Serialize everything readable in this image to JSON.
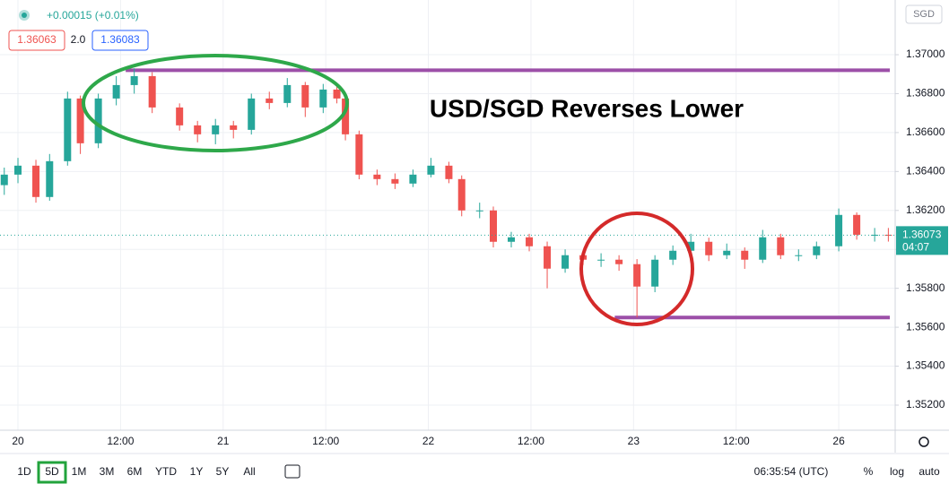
{
  "ui": {
    "change": "+0.00015 (+0.01%)",
    "bid": "1.36063",
    "spread": "2.0",
    "ask": "1.36083",
    "currency": "SGD",
    "countdown": "04:07",
    "ranges": [
      "1D",
      "5D",
      "1M",
      "3M",
      "6M",
      "YTD",
      "1Y",
      "5Y",
      "All"
    ],
    "selected_range": "5D",
    "clock": "06:35:54 (UTC)",
    "options": [
      "%",
      "log",
      "auto"
    ]
  },
  "chart_data": {
    "type": "candlestick",
    "title": "USD/SGD Reverses Lower",
    "up_color": "#26a69a",
    "down_color": "#ef5350",
    "grid": true,
    "x": [
      -1.6,
      0,
      2.1,
      3.7,
      5.8,
      7.3,
      9.4,
      11.5,
      13.6,
      15.7,
      18.9,
      21,
      23.1,
      25.2,
      27.3,
      29.4,
      31.5,
      33.6,
      35.7,
      37.3,
      38.3,
      39.9,
      42,
      44.1,
      46.2,
      48.3,
      50.4,
      51.9,
      54,
      55.6,
      57.7,
      59.8,
      61.9,
      64,
      66.1,
      68.2,
      70.3,
      72.4,
      74.5,
      76.6,
      78.7,
      80.8,
      82.9,
      85,
      87.1,
      89.2,
      91.3,
      93.4,
      96,
      98.1,
      100.2,
      101.8
    ],
    "open": [
      1.3633,
      1.36384,
      1.3643,
      1.36269,
      1.36453,
      1.36775,
      1.36545,
      1.36775,
      1.36844,
      1.3689,
      1.36729,
      1.36637,
      1.36591,
      1.36637,
      1.36614,
      1.36775,
      1.36752,
      1.36844,
      1.36729,
      1.36821,
      1.36775,
      1.36591,
      1.36384,
      1.36361,
      1.36338,
      1.36384,
      1.3643,
      1.36361,
      1.362,
      1.362,
      1.36039,
      1.36062,
      1.36016,
      1.35901,
      1.3597,
      1.35947,
      1.35947,
      1.35924,
      1.35809,
      1.35947,
      1.35993,
      1.36039,
      1.3597,
      1.35993,
      1.35947,
      1.36062,
      1.3597,
      1.3597,
      1.36016,
      1.36177,
      1.36075,
      1.36075
    ],
    "high": [
      1.3642,
      1.3647,
      1.3646,
      1.3649,
      1.3681,
      1.3679,
      1.368,
      1.3689,
      1.3693,
      1.3691,
      1.3675,
      1.3666,
      1.3667,
      1.3666,
      1.368,
      1.3681,
      1.3688,
      1.3686,
      1.3685,
      1.3684,
      1.3679,
      1.3661,
      1.3641,
      1.3639,
      1.3641,
      1.3647,
      1.3645,
      1.3638,
      1.3624,
      1.3622,
      1.3609,
      1.3608,
      1.3604,
      1.36,
      1.3599,
      1.3598,
      1.3597,
      1.3595,
      1.3597,
      1.3602,
      1.3608,
      1.3606,
      1.3603,
      1.3601,
      1.361,
      1.3608,
      1.36,
      1.3604,
      1.3621,
      1.3619,
      1.3611,
      1.3611
    ],
    "low": [
      1.3628,
      1.3634,
      1.3624,
      1.3625,
      1.3643,
      1.3649,
      1.3652,
      1.3674,
      1.368,
      1.367,
      1.3661,
      1.3655,
      1.3654,
      1.3657,
      1.3659,
      1.3672,
      1.3673,
      1.3668,
      1.367,
      1.3675,
      1.3656,
      1.3636,
      1.3633,
      1.3631,
      1.3632,
      1.3637,
      1.3634,
      1.3617,
      1.3616,
      1.3601,
      1.3601,
      1.3599,
      1.358,
      1.3588,
      1.3592,
      1.3591,
      1.3589,
      1.3565,
      1.3578,
      1.3592,
      1.3597,
      1.3594,
      1.3595,
      1.359,
      1.3593,
      1.3595,
      1.3594,
      1.3595,
      1.3599,
      1.3605,
      1.3604,
      1.3604
    ],
    "close": [
      1.36384,
      1.3643,
      1.36269,
      1.36453,
      1.36775,
      1.36545,
      1.36775,
      1.36844,
      1.3689,
      1.36729,
      1.36637,
      1.36591,
      1.36637,
      1.36614,
      1.36775,
      1.36752,
      1.36844,
      1.36729,
      1.36821,
      1.36775,
      1.36591,
      1.36384,
      1.36361,
      1.36338,
      1.36384,
      1.3643,
      1.36361,
      1.362,
      1.362,
      1.36039,
      1.36062,
      1.36016,
      1.35901,
      1.3597,
      1.35947,
      1.35947,
      1.35924,
      1.35809,
      1.35947,
      1.35993,
      1.36039,
      1.3597,
      1.35993,
      1.35947,
      1.36062,
      1.3597,
      1.3597,
      1.36016,
      1.36177,
      1.36075,
      1.36075,
      1.36073
    ],
    "levels": [
      {
        "value": 1.3692,
        "from": 12.6,
        "color": "#9c4fa8"
      },
      {
        "value": 1.3565,
        "from": 69.8,
        "color": "#9c4fa8"
      }
    ],
    "xlim": [
      -2.1,
      102.6
    ],
    "xticks": [
      {
        "value": 0,
        "label": "20"
      },
      {
        "value": 12,
        "label": "12:00"
      },
      {
        "value": 24,
        "label": "21"
      },
      {
        "value": 36,
        "label": "12:00"
      },
      {
        "value": 48,
        "label": "22"
      },
      {
        "value": 60,
        "label": "12:00"
      },
      {
        "value": 72,
        "label": "23"
      },
      {
        "value": 84,
        "label": "12:00"
      },
      {
        "value": 96,
        "label": "26"
      }
    ],
    "ylim": [
      1.35071,
      1.37281
    ],
    "yticks": [
      {
        "value": 1.352,
        "label": "1.35200"
      },
      {
        "value": 1.354,
        "label": "1.35400"
      },
      {
        "value": 1.356,
        "label": "1.35600"
      },
      {
        "value": 1.358,
        "label": "1.35800"
      },
      {
        "value": 1.36,
        "label": "1.36000"
      },
      {
        "value": 1.362,
        "label": "1.36200"
      },
      {
        "value": 1.364,
        "label": "1.36400"
      },
      {
        "value": 1.366,
        "label": "1.36600"
      },
      {
        "value": 1.368,
        "label": "1.36800"
      },
      {
        "value": 1.37,
        "label": "1.37000"
      }
    ]
  }
}
